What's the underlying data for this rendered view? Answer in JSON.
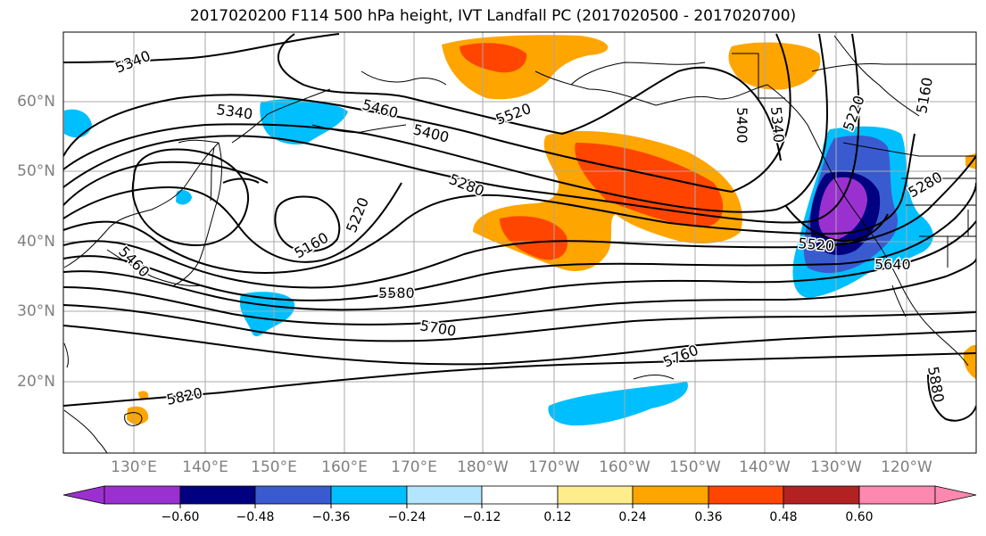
{
  "title": "2017020200 F114 500 hPa height, IVT Landfall PC (2017020500 - 2017020700)",
  "lat_labels": [
    "60°N",
    "50°N",
    "40°N",
    "30°N",
    "20°N"
  ],
  "lon_labels": [
    "130°E",
    "140°E",
    "150°E",
    "160°E",
    "170°E",
    "180°W",
    "170°W",
    "160°W",
    "150°W",
    "140°W",
    "130°W",
    "120°W"
  ],
  "contour_labels": [
    "5340",
    "5340",
    "5460",
    "5520",
    "5400",
    "5280",
    "5400",
    "5340",
    "5220",
    "5160",
    "5160",
    "5220",
    "5460",
    "5580",
    "5700",
    "5820",
    "5760",
    "5520",
    "5640",
    "5280",
    "5880"
  ],
  "colorbar": {
    "ticks": [
      "−0.60",
      "−0.48",
      "−0.36",
      "−0.24",
      "−0.12",
      "0.12",
      "0.24",
      "0.36",
      "0.48",
      "0.60"
    ],
    "colors": [
      "#9b30d0",
      "#000080",
      "#3a5bd0",
      "#00bfff",
      "#b3e5ff",
      "#ffffff",
      "#ffec8b",
      "#ffa500",
      "#ff4500",
      "#b22222",
      "#ff88b0"
    ]
  }
}
